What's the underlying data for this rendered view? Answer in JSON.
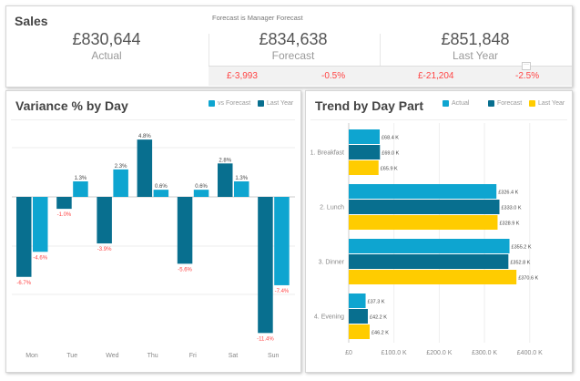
{
  "sales": {
    "title": "Sales",
    "note": "Forecast is Manager Forecast",
    "actual": {
      "value": "£830,644",
      "label": "Actual"
    },
    "forecast": {
      "value": "£834,638",
      "label": "Forecast",
      "diff": "£-3,993",
      "pct": "-0.5%"
    },
    "last_year": {
      "value": "£851,848",
      "label": "Last Year",
      "diff": "£-21,204",
      "pct": "-2.5%"
    }
  },
  "colors": {
    "light": "#0ea5d0",
    "dark": "#086f8f",
    "yellow": "#ffcc00",
    "negative": "#ff4444"
  },
  "chart_data": [
    {
      "type": "bar",
      "title": "Variance % by Day",
      "legend": [
        "vs Forecast",
        "Last Year"
      ],
      "categories": [
        "Mon",
        "Tue",
        "Wed",
        "Thu",
        "Fri",
        "Sat",
        "Sun"
      ],
      "series": [
        {
          "name": "Last Year",
          "values": [
            -6.7,
            -1.0,
            -3.9,
            4.8,
            -5.6,
            2.8,
            -11.4
          ],
          "labels": [
            "-6.7%",
            "-1.0%",
            "-3.9%",
            "4.8%",
            "-5.6%",
            "2.8%",
            "-11.4%"
          ]
        },
        {
          "name": "vs Forecast",
          "values": [
            -4.6,
            1.3,
            2.3,
            0.6,
            0.6,
            1.3,
            -7.4
          ],
          "labels": [
            "-4.6%",
            "1.3%",
            "2.3%",
            "0.6%",
            "0.6%",
            "1.3%",
            "-7.4%"
          ]
        }
      ]
    },
    {
      "type": "bar",
      "orientation": "horizontal",
      "title": "Trend by Day Part",
      "legend": [
        "Actual",
        "Forecast",
        "Last Year"
      ],
      "categories": [
        "1. Breakfast",
        "2. Lunch",
        "3. Dinner",
        "4. Evening"
      ],
      "xlim": [
        0,
        400
      ],
      "xticks": [
        "£0",
        "£100.0 K",
        "£200.0 K",
        "£300.0 K",
        "£400.0 K"
      ],
      "series": [
        {
          "name": "Actual",
          "values": [
            68.4,
            326.4,
            355.2,
            37.3
          ],
          "labels": [
            "£68.4 K",
            "£326.4 K",
            "£355.2 K",
            "£37.3 K"
          ]
        },
        {
          "name": "Forecast",
          "values": [
            69.0,
            333.0,
            352.8,
            42.2
          ],
          "labels": [
            "£69.0 K",
            "£333.0 K",
            "£352.8 K",
            "£42.2 K"
          ]
        },
        {
          "name": "Last Year",
          "values": [
            65.9,
            328.9,
            370.6,
            46.2
          ],
          "labels": [
            "£65.9 K",
            "£328.9 K",
            "£370.6 K",
            "£46.2 K"
          ]
        }
      ]
    }
  ]
}
